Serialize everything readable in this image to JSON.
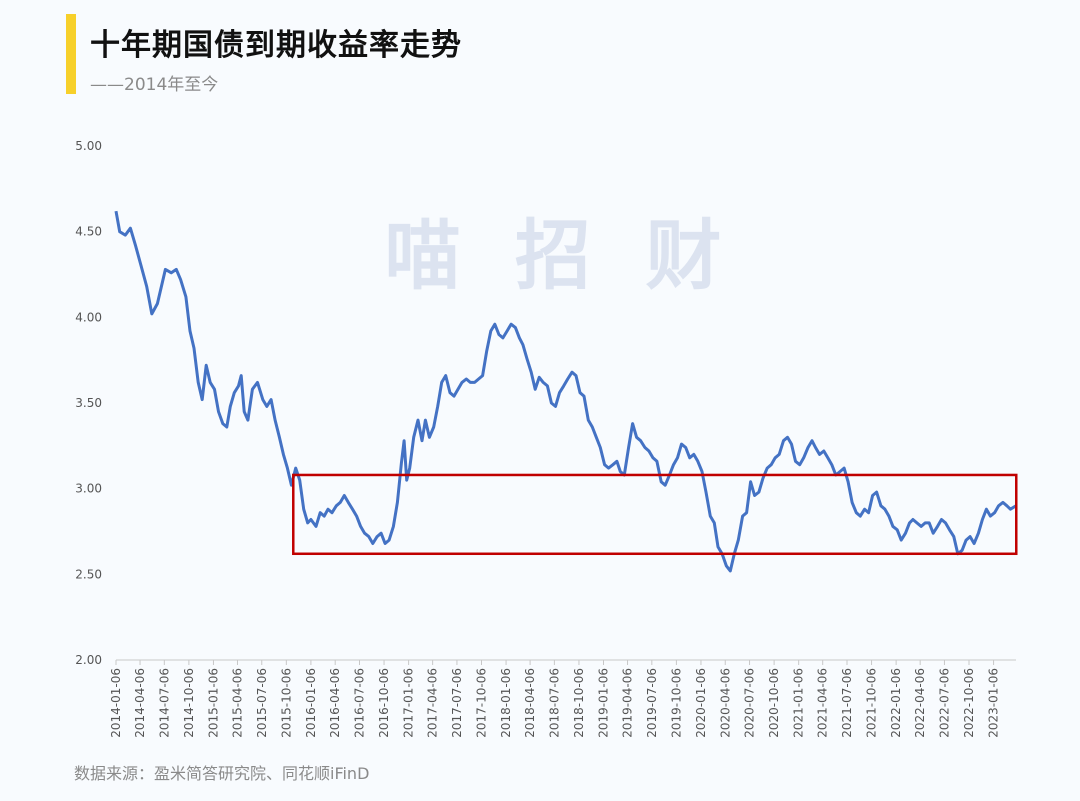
{
  "header": {
    "title": "十年期国债到期收益率走势",
    "subtitle": "——2014年至今"
  },
  "source": "数据来源：盈米简答研究院、同花顺iFinD",
  "watermark": "喵 招 财",
  "colors": {
    "line": "#4472c4",
    "highlight_box": "#c00000",
    "accent": "#f7d02a",
    "axis_text": "#555555",
    "watermark": "#dce3f0"
  },
  "chart_data": {
    "type": "line",
    "title": "十年期国债到期收益率走势",
    "subtitle": "——2014年至今",
    "xlabel": "",
    "ylabel": "",
    "ylim": [
      2.0,
      5.0
    ],
    "yticks": [
      "5.00",
      "4.50",
      "4.00",
      "3.50",
      "3.00",
      "2.50",
      "2.00"
    ],
    "grid": false,
    "legend": "none",
    "x_tick_labels": [
      "2014-01-06",
      "2014-04-06",
      "2014-07-06",
      "2014-10-06",
      "2015-01-06",
      "2015-04-06",
      "2015-07-06",
      "2015-10-06",
      "2016-01-06",
      "2016-04-06",
      "2016-07-06",
      "2016-10-06",
      "2017-01-06",
      "2017-04-06",
      "2017-07-06",
      "2017-10-06",
      "2018-01-06",
      "2018-04-06",
      "2018-07-06",
      "2018-10-06",
      "2019-01-06",
      "2019-04-06",
      "2019-07-06",
      "2019-10-06",
      "2020-01-06",
      "2020-04-06",
      "2020-07-06",
      "2020-10-06",
      "2021-01-06",
      "2021-04-06",
      "2021-07-06",
      "2021-10-06",
      "2022-01-06",
      "2022-04-06",
      "2022-07-06",
      "2022-10-06",
      "2023-01-06"
    ],
    "x_start": "2014-01-06",
    "x_end": "2023-03-31",
    "highlight_range": {
      "x_from": "2015-11-01",
      "x_to": "2023-04-01",
      "y_from": 2.62,
      "y_to": 3.08
    },
    "series": [
      {
        "points": [
          [
            "2014-01-06",
            4.62
          ],
          [
            "2014-01-20",
            4.5
          ],
          [
            "2014-02-10",
            4.48
          ],
          [
            "2014-03-01",
            4.52
          ],
          [
            "2014-03-20",
            4.42
          ],
          [
            "2014-04-10",
            4.3
          ],
          [
            "2014-05-01",
            4.18
          ],
          [
            "2014-05-20",
            4.02
          ],
          [
            "2014-06-10",
            4.08
          ],
          [
            "2014-06-25",
            4.18
          ],
          [
            "2014-07-10",
            4.28
          ],
          [
            "2014-08-01",
            4.26
          ],
          [
            "2014-08-20",
            4.28
          ],
          [
            "2014-09-05",
            4.22
          ],
          [
            "2014-09-25",
            4.12
          ],
          [
            "2014-10-10",
            3.92
          ],
          [
            "2014-10-25",
            3.82
          ],
          [
            "2014-11-10",
            3.62
          ],
          [
            "2014-11-25",
            3.52
          ],
          [
            "2014-12-10",
            3.72
          ],
          [
            "2014-12-25",
            3.62
          ],
          [
            "2015-01-10",
            3.58
          ],
          [
            "2015-01-25",
            3.45
          ],
          [
            "2015-02-10",
            3.38
          ],
          [
            "2015-02-25",
            3.36
          ],
          [
            "2015-03-10",
            3.48
          ],
          [
            "2015-03-25",
            3.56
          ],
          [
            "2015-04-10",
            3.6
          ],
          [
            "2015-04-20",
            3.66
          ],
          [
            "2015-05-01",
            3.45
          ],
          [
            "2015-05-15",
            3.4
          ],
          [
            "2015-06-01",
            3.58
          ],
          [
            "2015-06-20",
            3.62
          ],
          [
            "2015-07-10",
            3.52
          ],
          [
            "2015-07-25",
            3.48
          ],
          [
            "2015-08-10",
            3.52
          ],
          [
            "2015-08-25",
            3.4
          ],
          [
            "2015-09-10",
            3.3
          ],
          [
            "2015-09-25",
            3.2
          ],
          [
            "2015-10-10",
            3.12
          ],
          [
            "2015-10-25",
            3.02
          ],
          [
            "2015-11-10",
            3.12
          ],
          [
            "2015-11-25",
            3.05
          ],
          [
            "2015-12-10",
            2.88
          ],
          [
            "2015-12-25",
            2.8
          ],
          [
            "2016-01-06",
            2.82
          ],
          [
            "2016-01-25",
            2.78
          ],
          [
            "2016-02-10",
            2.86
          ],
          [
            "2016-02-25",
            2.84
          ],
          [
            "2016-03-10",
            2.88
          ],
          [
            "2016-03-25",
            2.86
          ],
          [
            "2016-04-10",
            2.9
          ],
          [
            "2016-04-25",
            2.92
          ],
          [
            "2016-05-10",
            2.96
          ],
          [
            "2016-05-25",
            2.92
          ],
          [
            "2016-06-10",
            2.88
          ],
          [
            "2016-06-25",
            2.84
          ],
          [
            "2016-07-10",
            2.78
          ],
          [
            "2016-07-25",
            2.74
          ],
          [
            "2016-08-10",
            2.72
          ],
          [
            "2016-08-25",
            2.68
          ],
          [
            "2016-09-10",
            2.72
          ],
          [
            "2016-09-25",
            2.74
          ],
          [
            "2016-10-10",
            2.68
          ],
          [
            "2016-10-25",
            2.7
          ],
          [
            "2016-11-10",
            2.78
          ],
          [
            "2016-11-25",
            2.92
          ],
          [
            "2016-12-10",
            3.15
          ],
          [
            "2016-12-20",
            3.28
          ],
          [
            "2016-12-30",
            3.05
          ],
          [
            "2017-01-10",
            3.12
          ],
          [
            "2017-01-25",
            3.3
          ],
          [
            "2017-02-10",
            3.4
          ],
          [
            "2017-02-25",
            3.28
          ],
          [
            "2017-03-10",
            3.4
          ],
          [
            "2017-03-25",
            3.3
          ],
          [
            "2017-04-10",
            3.36
          ],
          [
            "2017-04-25",
            3.48
          ],
          [
            "2017-05-10",
            3.62
          ],
          [
            "2017-05-25",
            3.66
          ],
          [
            "2017-06-10",
            3.56
          ],
          [
            "2017-06-25",
            3.54
          ],
          [
            "2017-07-10",
            3.58
          ],
          [
            "2017-07-25",
            3.62
          ],
          [
            "2017-08-10",
            3.64
          ],
          [
            "2017-08-25",
            3.62
          ],
          [
            "2017-09-10",
            3.62
          ],
          [
            "2017-09-25",
            3.64
          ],
          [
            "2017-10-10",
            3.66
          ],
          [
            "2017-10-25",
            3.8
          ],
          [
            "2017-11-10",
            3.92
          ],
          [
            "2017-11-25",
            3.96
          ],
          [
            "2017-12-10",
            3.9
          ],
          [
            "2017-12-25",
            3.88
          ],
          [
            "2018-01-10",
            3.92
          ],
          [
            "2018-01-25",
            3.96
          ],
          [
            "2018-02-10",
            3.94
          ],
          [
            "2018-02-25",
            3.88
          ],
          [
            "2018-03-10",
            3.84
          ],
          [
            "2018-03-25",
            3.76
          ],
          [
            "2018-04-10",
            3.68
          ],
          [
            "2018-04-25",
            3.58
          ],
          [
            "2018-05-10",
            3.65
          ],
          [
            "2018-05-25",
            3.62
          ],
          [
            "2018-06-10",
            3.6
          ],
          [
            "2018-06-25",
            3.5
          ],
          [
            "2018-07-10",
            3.48
          ],
          [
            "2018-07-25",
            3.56
          ],
          [
            "2018-08-10",
            3.6
          ],
          [
            "2018-08-25",
            3.64
          ],
          [
            "2018-09-10",
            3.68
          ],
          [
            "2018-09-25",
            3.66
          ],
          [
            "2018-10-10",
            3.56
          ],
          [
            "2018-10-25",
            3.54
          ],
          [
            "2018-11-10",
            3.4
          ],
          [
            "2018-11-25",
            3.36
          ],
          [
            "2018-12-10",
            3.3
          ],
          [
            "2018-12-25",
            3.24
          ],
          [
            "2019-01-10",
            3.14
          ],
          [
            "2019-01-25",
            3.12
          ],
          [
            "2019-02-10",
            3.14
          ],
          [
            "2019-02-25",
            3.16
          ],
          [
            "2019-03-10",
            3.1
          ],
          [
            "2019-03-25",
            3.08
          ],
          [
            "2019-04-10",
            3.24
          ],
          [
            "2019-04-25",
            3.38
          ],
          [
            "2019-05-10",
            3.3
          ],
          [
            "2019-05-25",
            3.28
          ],
          [
            "2019-06-10",
            3.24
          ],
          [
            "2019-06-25",
            3.22
          ],
          [
            "2019-07-10",
            3.18
          ],
          [
            "2019-07-25",
            3.16
          ],
          [
            "2019-08-10",
            3.04
          ],
          [
            "2019-08-25",
            3.02
          ],
          [
            "2019-09-10",
            3.08
          ],
          [
            "2019-09-25",
            3.14
          ],
          [
            "2019-10-10",
            3.18
          ],
          [
            "2019-10-25",
            3.26
          ],
          [
            "2019-11-10",
            3.24
          ],
          [
            "2019-11-25",
            3.18
          ],
          [
            "2019-12-10",
            3.2
          ],
          [
            "2019-12-25",
            3.16
          ],
          [
            "2020-01-10",
            3.1
          ],
          [
            "2020-01-25",
            2.98
          ],
          [
            "2020-02-10",
            2.84
          ],
          [
            "2020-02-25",
            2.8
          ],
          [
            "2020-03-10",
            2.66
          ],
          [
            "2020-03-25",
            2.62
          ],
          [
            "2020-04-10",
            2.55
          ],
          [
            "2020-04-25",
            2.52
          ],
          [
            "2020-05-10",
            2.62
          ],
          [
            "2020-05-25",
            2.7
          ],
          [
            "2020-06-10",
            2.84
          ],
          [
            "2020-06-25",
            2.86
          ],
          [
            "2020-07-10",
            3.04
          ],
          [
            "2020-07-25",
            2.96
          ],
          [
            "2020-08-10",
            2.98
          ],
          [
            "2020-08-25",
            3.06
          ],
          [
            "2020-09-10",
            3.12
          ],
          [
            "2020-09-25",
            3.14
          ],
          [
            "2020-10-10",
            3.18
          ],
          [
            "2020-10-25",
            3.2
          ],
          [
            "2020-11-10",
            3.28
          ],
          [
            "2020-11-25",
            3.3
          ],
          [
            "2020-12-10",
            3.26
          ],
          [
            "2020-12-25",
            3.16
          ],
          [
            "2021-01-10",
            3.14
          ],
          [
            "2021-01-25",
            3.18
          ],
          [
            "2021-02-10",
            3.24
          ],
          [
            "2021-02-25",
            3.28
          ],
          [
            "2021-03-10",
            3.24
          ],
          [
            "2021-03-25",
            3.2
          ],
          [
            "2021-04-10",
            3.22
          ],
          [
            "2021-04-25",
            3.18
          ],
          [
            "2021-05-10",
            3.14
          ],
          [
            "2021-05-25",
            3.08
          ],
          [
            "2021-06-10",
            3.1
          ],
          [
            "2021-06-25",
            3.12
          ],
          [
            "2021-07-10",
            3.04
          ],
          [
            "2021-07-25",
            2.92
          ],
          [
            "2021-08-10",
            2.86
          ],
          [
            "2021-08-25",
            2.84
          ],
          [
            "2021-09-10",
            2.88
          ],
          [
            "2021-09-25",
            2.86
          ],
          [
            "2021-10-10",
            2.96
          ],
          [
            "2021-10-25",
            2.98
          ],
          [
            "2021-11-10",
            2.9
          ],
          [
            "2021-11-25",
            2.88
          ],
          [
            "2021-12-10",
            2.84
          ],
          [
            "2021-12-25",
            2.78
          ],
          [
            "2022-01-10",
            2.76
          ],
          [
            "2022-01-25",
            2.7
          ],
          [
            "2022-02-10",
            2.74
          ],
          [
            "2022-02-25",
            2.8
          ],
          [
            "2022-03-10",
            2.82
          ],
          [
            "2022-03-25",
            2.8
          ],
          [
            "2022-04-10",
            2.78
          ],
          [
            "2022-04-25",
            2.8
          ],
          [
            "2022-05-10",
            2.8
          ],
          [
            "2022-05-25",
            2.74
          ],
          [
            "2022-06-10",
            2.78
          ],
          [
            "2022-06-25",
            2.82
          ],
          [
            "2022-07-10",
            2.8
          ],
          [
            "2022-07-25",
            2.76
          ],
          [
            "2022-08-10",
            2.72
          ],
          [
            "2022-08-25",
            2.62
          ],
          [
            "2022-09-10",
            2.64
          ],
          [
            "2022-09-25",
            2.7
          ],
          [
            "2022-10-10",
            2.72
          ],
          [
            "2022-10-25",
            2.68
          ],
          [
            "2022-11-10",
            2.74
          ],
          [
            "2022-11-25",
            2.82
          ],
          [
            "2022-12-10",
            2.88
          ],
          [
            "2022-12-25",
            2.84
          ],
          [
            "2023-01-10",
            2.86
          ],
          [
            "2023-01-25",
            2.9
          ],
          [
            "2023-02-10",
            2.92
          ],
          [
            "2023-02-25",
            2.9
          ],
          [
            "2023-03-10",
            2.88
          ],
          [
            "2023-03-31",
            2.9
          ]
        ]
      }
    ]
  }
}
